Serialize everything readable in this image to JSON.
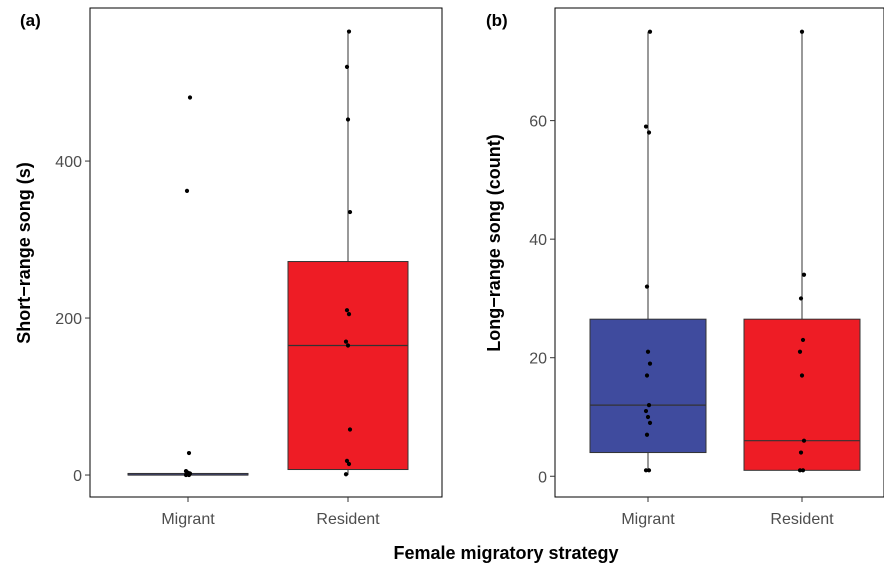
{
  "chart_data": [
    {
      "type": "box",
      "panel_label": "(a)",
      "ylabel": "Short−range song (s)",
      "xlabel": "Female migratory strategy",
      "ylim": [
        -28,
        595
      ],
      "yticks": [
        0,
        200,
        400
      ],
      "ytick_labels": [
        "0",
        "200",
        "400"
      ],
      "grid": false,
      "categories": [
        "Migrant",
        "Resident"
      ],
      "boxes": [
        {
          "category": "Migrant",
          "color": "#4a52a0",
          "q1": 0,
          "median": 0,
          "q3": 2,
          "whisker_low": 0,
          "whisker_high": 3,
          "points": [
            0,
            0,
            1,
            2,
            3,
            5,
            28,
            362,
            481
          ]
        },
        {
          "category": "Resident",
          "color": "#ee1c25",
          "q1": 7,
          "median": 165,
          "q3": 272,
          "whisker_low": 0,
          "whisker_high": 565,
          "points": [
            1,
            14,
            18,
            58,
            165,
            170,
            205,
            210,
            335,
            453,
            520,
            565
          ]
        }
      ]
    },
    {
      "type": "box",
      "panel_label": "(b)",
      "ylabel": "Long−range song (count)",
      "xlabel": "Female migratory strategy",
      "ylim": [
        -3.5,
        79
      ],
      "yticks": [
        0,
        20,
        40,
        60
      ],
      "ytick_labels": [
        "0",
        "20",
        "40",
        "60"
      ],
      "grid": false,
      "categories": [
        "Migrant",
        "Resident"
      ],
      "boxes": [
        {
          "category": "Migrant",
          "color": "#3f4b9e",
          "q1": 4,
          "median": 12,
          "q3": 26.5,
          "whisker_low": 1,
          "whisker_high": 75,
          "points": [
            1,
            1,
            7,
            9,
            10,
            11,
            12,
            17,
            19,
            21,
            32,
            58,
            59,
            75
          ]
        },
        {
          "category": "Resident",
          "color": "#ee1c25",
          "q1": 1,
          "median": 6,
          "q3": 26.5,
          "whisker_low": 1,
          "whisker_high": 75,
          "points": [
            1,
            1,
            4,
            6,
            17,
            21,
            23,
            30,
            34,
            75
          ]
        }
      ]
    }
  ]
}
